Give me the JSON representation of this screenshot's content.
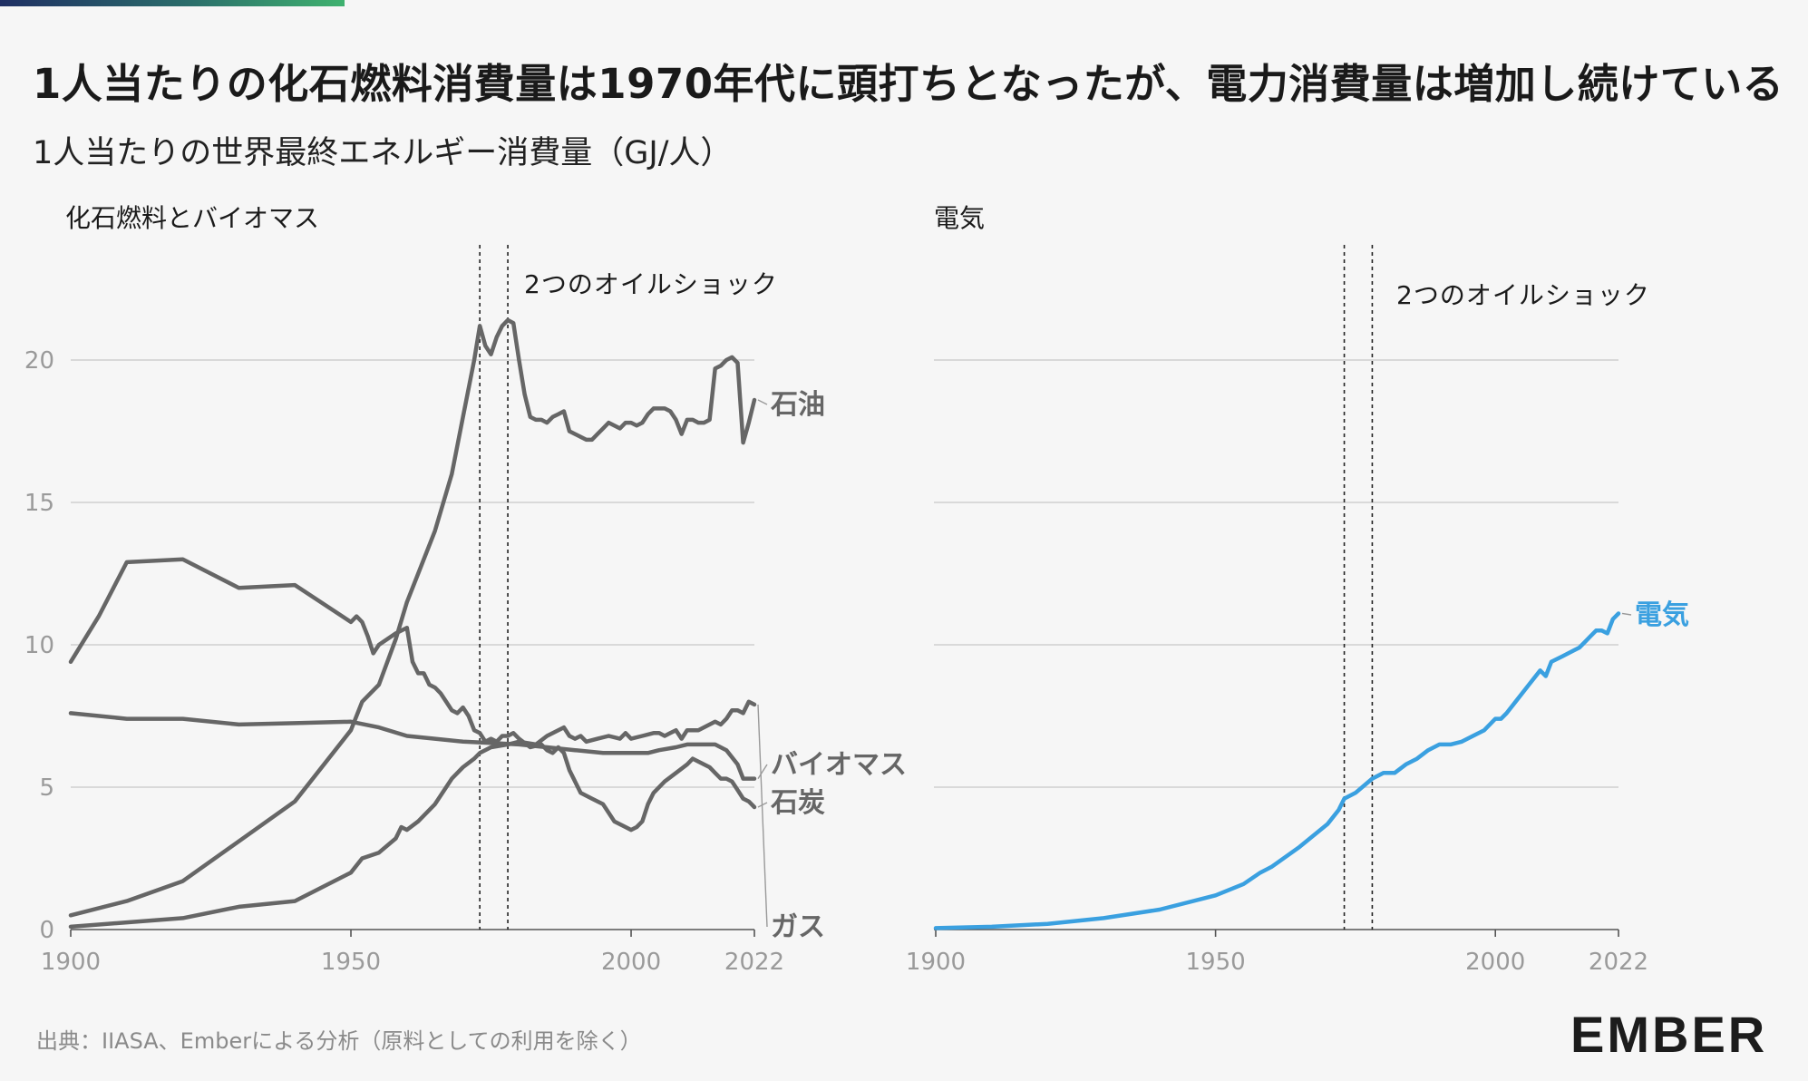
{
  "title": "1人当たりの化石燃料消費量は1970年代に頭打ちとなったが、電力消費量は増加し続けている",
  "subtitle": "1人当たりの世界最終エネルギー消費量（GJ/人）",
  "source": "出典：IIASA、Emberによる分析（原料としての利用を除く）",
  "logo": "EMBER",
  "colors": {
    "fossil": "#666666",
    "electricity": "#3aa0e0",
    "logo_accent": "#3aa0e0"
  },
  "chart_data": [
    {
      "type": "line",
      "title": "化石燃料とバイオマス",
      "annotation": "2つのオイルショック",
      "shock_years": [
        1973,
        1978
      ],
      "x_ticks": [
        1900,
        1950,
        2000,
        2022
      ],
      "y_ticks": [
        0,
        5,
        10,
        15,
        20
      ],
      "ylim": [
        0,
        22
      ],
      "xlim": [
        1900,
        2022
      ],
      "series": [
        {
          "name": "石油",
          "points": [
            [
              1900,
              0.5
            ],
            [
              1910,
              1.0
            ],
            [
              1920,
              1.7
            ],
            [
              1930,
              3.1
            ],
            [
              1940,
              4.5
            ],
            [
              1950,
              7.0
            ],
            [
              1952,
              8.0
            ],
            [
              1955,
              8.6
            ],
            [
              1958,
              10.2
            ],
            [
              1960,
              11.5
            ],
            [
              1962,
              12.5
            ],
            [
              1965,
              14.0
            ],
            [
              1968,
              16.0
            ],
            [
              1970,
              18.0
            ],
            [
              1972,
              20.0
            ],
            [
              1973,
              21.2
            ],
            [
              1974,
              20.5
            ],
            [
              1975,
              20.2
            ],
            [
              1976,
              20.8
            ],
            [
              1977,
              21.2
            ],
            [
              1978,
              21.4
            ],
            [
              1979,
              21.3
            ],
            [
              1980,
              20.0
            ],
            [
              1981,
              18.8
            ],
            [
              1982,
              18.0
            ],
            [
              1983,
              17.9
            ],
            [
              1984,
              17.9
            ],
            [
              1985,
              17.8
            ],
            [
              1986,
              18.0
            ],
            [
              1987,
              18.1
            ],
            [
              1988,
              18.2
            ],
            [
              1989,
              17.5
            ],
            [
              1990,
              17.4
            ],
            [
              1991,
              17.3
            ],
            [
              1992,
              17.2
            ],
            [
              1993,
              17.2
            ],
            [
              1994,
              17.4
            ],
            [
              1995,
              17.6
            ],
            [
              1996,
              17.8
            ],
            [
              1997,
              17.7
            ],
            [
              1998,
              17.6
            ],
            [
              1999,
              17.8
            ],
            [
              2000,
              17.8
            ],
            [
              2001,
              17.7
            ],
            [
              2002,
              17.8
            ],
            [
              2003,
              18.1
            ],
            [
              2004,
              18.3
            ],
            [
              2005,
              18.3
            ],
            [
              2006,
              18.3
            ],
            [
              2007,
              18.2
            ],
            [
              2008,
              17.9
            ],
            [
              2009,
              17.4
            ],
            [
              2010,
              17.9
            ],
            [
              2011,
              17.9
            ],
            [
              2012,
              17.8
            ],
            [
              2013,
              17.8
            ],
            [
              2014,
              17.9
            ],
            [
              2015,
              19.7
            ],
            [
              2016,
              19.8
            ],
            [
              2017,
              20.0
            ],
            [
              2018,
              20.1
            ],
            [
              2019,
              19.9
            ],
            [
              2020,
              17.1
            ],
            [
              2021,
              17.8
            ],
            [
              2022,
              18.6
            ]
          ]
        },
        {
          "name": "ガス",
          "points": [
            [
              1900,
              0.1
            ],
            [
              1910,
              0.25
            ],
            [
              1920,
              0.4
            ],
            [
              1930,
              0.8
            ],
            [
              1940,
              1.0
            ],
            [
              1950,
              2.0
            ],
            [
              1952,
              2.5
            ],
            [
              1955,
              2.7
            ],
            [
              1958,
              3.2
            ],
            [
              1959,
              3.6
            ],
            [
              1960,
              3.5
            ],
            [
              1962,
              3.8
            ],
            [
              1965,
              4.4
            ],
            [
              1968,
              5.3
            ],
            [
              1970,
              5.7
            ],
            [
              1972,
              6.0
            ],
            [
              1973,
              6.2
            ],
            [
              1975,
              6.4
            ],
            [
              1978,
              6.5
            ],
            [
              1980,
              6.6
            ],
            [
              1983,
              6.5
            ],
            [
              1985,
              6.8
            ],
            [
              1987,
              7.0
            ],
            [
              1988,
              7.1
            ],
            [
              1989,
              6.8
            ],
            [
              1990,
              6.7
            ],
            [
              1991,
              6.8
            ],
            [
              1992,
              6.6
            ],
            [
              1994,
              6.7
            ],
            [
              1996,
              6.8
            ],
            [
              1998,
              6.7
            ],
            [
              1999,
              6.9
            ],
            [
              2000,
              6.7
            ],
            [
              2002,
              6.8
            ],
            [
              2004,
              6.9
            ],
            [
              2005,
              6.9
            ],
            [
              2006,
              6.8
            ],
            [
              2007,
              6.9
            ],
            [
              2008,
              7.0
            ],
            [
              2009,
              6.7
            ],
            [
              2010,
              7.0
            ],
            [
              2012,
              7.0
            ],
            [
              2014,
              7.2
            ],
            [
              2015,
              7.3
            ],
            [
              2016,
              7.2
            ],
            [
              2017,
              7.4
            ],
            [
              2018,
              7.7
            ],
            [
              2019,
              7.7
            ],
            [
              2020,
              7.6
            ],
            [
              2021,
              8.0
            ],
            [
              2022,
              7.9
            ]
          ]
        },
        {
          "name": "バイオマス",
          "points": [
            [
              1900,
              7.6
            ],
            [
              1910,
              7.4
            ],
            [
              1920,
              7.4
            ],
            [
              1930,
              7.2
            ],
            [
              1940,
              7.25
            ],
            [
              1950,
              7.3
            ],
            [
              1955,
              7.1
            ],
            [
              1960,
              6.8
            ],
            [
              1965,
              6.7
            ],
            [
              1970,
              6.6
            ],
            [
              1975,
              6.55
            ],
            [
              1980,
              6.5
            ],
            [
              1985,
              6.4
            ],
            [
              1990,
              6.3
            ],
            [
              1995,
              6.2
            ],
            [
              2000,
              6.2
            ],
            [
              2003,
              6.2
            ],
            [
              2005,
              6.3
            ],
            [
              2008,
              6.4
            ],
            [
              2010,
              6.5
            ],
            [
              2013,
              6.5
            ],
            [
              2015,
              6.5
            ],
            [
              2017,
              6.3
            ],
            [
              2019,
              5.8
            ],
            [
              2020,
              5.3
            ],
            [
              2022,
              5.3
            ]
          ]
        },
        {
          "name": "石炭",
          "points": [
            [
              1900,
              9.4
            ],
            [
              1905,
              11.0
            ],
            [
              1910,
              12.9
            ],
            [
              1920,
              13.0
            ],
            [
              1930,
              12.0
            ],
            [
              1940,
              12.1
            ],
            [
              1950,
              10.8
            ],
            [
              1951,
              11.0
            ],
            [
              1952,
              10.8
            ],
            [
              1953,
              10.3
            ],
            [
              1954,
              9.7
            ],
            [
              1955,
              10.0
            ],
            [
              1958,
              10.4
            ],
            [
              1960,
              10.6
            ],
            [
              1961,
              9.4
            ],
            [
              1962,
              9.0
            ],
            [
              1963,
              9.0
            ],
            [
              1964,
              8.6
            ],
            [
              1965,
              8.5
            ],
            [
              1966,
              8.3
            ],
            [
              1967,
              8.0
            ],
            [
              1968,
              7.7
            ],
            [
              1969,
              7.6
            ],
            [
              1970,
              7.8
            ],
            [
              1971,
              7.5
            ],
            [
              1972,
              7.0
            ],
            [
              1973,
              6.9
            ],
            [
              1974,
              6.6
            ],
            [
              1975,
              6.7
            ],
            [
              1976,
              6.6
            ],
            [
              1977,
              6.8
            ],
            [
              1978,
              6.8
            ],
            [
              1979,
              6.9
            ],
            [
              1980,
              6.7
            ],
            [
              1982,
              6.4
            ],
            [
              1984,
              6.5
            ],
            [
              1985,
              6.3
            ],
            [
              1986,
              6.2
            ],
            [
              1987,
              6.4
            ],
            [
              1988,
              6.2
            ],
            [
              1989,
              5.6
            ],
            [
              1990,
              5.2
            ],
            [
              1991,
              4.8
            ],
            [
              1993,
              4.6
            ],
            [
              1995,
              4.4
            ],
            [
              1997,
              3.8
            ],
            [
              1999,
              3.6
            ],
            [
              2000,
              3.5
            ],
            [
              2001,
              3.6
            ],
            [
              2002,
              3.8
            ],
            [
              2003,
              4.4
            ],
            [
              2004,
              4.8
            ],
            [
              2006,
              5.2
            ],
            [
              2008,
              5.5
            ],
            [
              2010,
              5.8
            ],
            [
              2011,
              6.0
            ],
            [
              2012,
              5.9
            ],
            [
              2013,
              5.8
            ],
            [
              2014,
              5.7
            ],
            [
              2015,
              5.5
            ],
            [
              2016,
              5.3
            ],
            [
              2017,
              5.3
            ],
            [
              2018,
              5.2
            ],
            [
              2019,
              4.9
            ],
            [
              2020,
              4.6
            ],
            [
              2021,
              4.5
            ],
            [
              2022,
              4.3
            ]
          ]
        }
      ]
    },
    {
      "type": "line",
      "title": "電気",
      "annotation": "2つのオイルショック",
      "shock_years": [
        1973,
        1978
      ],
      "x_ticks": [
        1900,
        1950,
        2000,
        2022
      ],
      "y_ticks": [
        0,
        5,
        10,
        15,
        20
      ],
      "ylim": [
        0,
        22
      ],
      "xlim": [
        1900,
        2022
      ],
      "series": [
        {
          "name": "電気",
          "points": [
            [
              1900,
              0.05
            ],
            [
              1910,
              0.1
            ],
            [
              1920,
              0.2
            ],
            [
              1930,
              0.4
            ],
            [
              1940,
              0.7
            ],
            [
              1950,
              1.2
            ],
            [
              1955,
              1.6
            ],
            [
              1958,
              2.0
            ],
            [
              1960,
              2.2
            ],
            [
              1965,
              2.9
            ],
            [
              1970,
              3.7
            ],
            [
              1972,
              4.2
            ],
            [
              1973,
              4.6
            ],
            [
              1975,
              4.8
            ],
            [
              1978,
              5.3
            ],
            [
              1980,
              5.5
            ],
            [
              1982,
              5.5
            ],
            [
              1984,
              5.8
            ],
            [
              1986,
              6.0
            ],
            [
              1988,
              6.3
            ],
            [
              1990,
              6.5
            ],
            [
              1992,
              6.5
            ],
            [
              1994,
              6.6
            ],
            [
              1996,
              6.8
            ],
            [
              1998,
              7.0
            ],
            [
              1999,
              7.2
            ],
            [
              2000,
              7.4
            ],
            [
              2001,
              7.4
            ],
            [
              2002,
              7.6
            ],
            [
              2004,
              8.1
            ],
            [
              2006,
              8.6
            ],
            [
              2008,
              9.1
            ],
            [
              2009,
              8.9
            ],
            [
              2010,
              9.4
            ],
            [
              2012,
              9.6
            ],
            [
              2014,
              9.8
            ],
            [
              2015,
              9.9
            ],
            [
              2016,
              10.1
            ],
            [
              2017,
              10.3
            ],
            [
              2018,
              10.5
            ],
            [
              2019,
              10.5
            ],
            [
              2020,
              10.4
            ],
            [
              2021,
              10.9
            ],
            [
              2022,
              11.1
            ]
          ]
        }
      ]
    }
  ]
}
